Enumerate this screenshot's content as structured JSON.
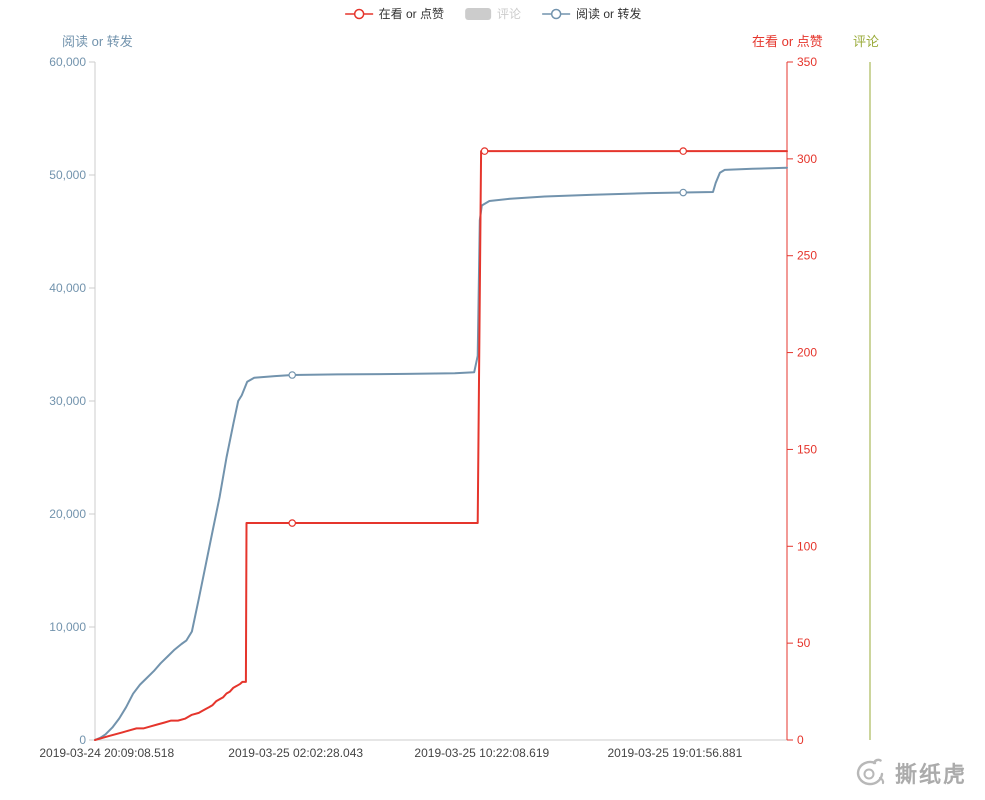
{
  "legend": {
    "items": [
      {
        "label": "在看 or 点赞",
        "symbol": "line-circle",
        "color": "#e5352c",
        "text_color": "#333333",
        "selected": true
      },
      {
        "label": "评论",
        "symbol": "rect",
        "color": "#cccccc",
        "text_color": "#cccccc",
        "selected": false
      },
      {
        "label": "阅读 or 转发",
        "symbol": "line-circle",
        "color": "#7293ad",
        "text_color": "#333333",
        "selected": true
      }
    ]
  },
  "watermark": {
    "text": "撕纸虎",
    "color": "#ababab"
  },
  "chart_data": {
    "type": "line",
    "title": "",
    "grid": false,
    "legend_position": "top-center",
    "axes": {
      "left": {
        "title": "阅读 or 转发",
        "color": "#7293ad",
        "line_color": "#cccccc",
        "min": 0,
        "max": 60000,
        "ticks": [
          {
            "label": "0",
            "v": 0
          },
          {
            "label": "10,000",
            "v": 10000
          },
          {
            "label": "20,000",
            "v": 20000
          },
          {
            "label": "30,000",
            "v": 30000
          },
          {
            "label": "40,000",
            "v": 40000
          },
          {
            "label": "50,000",
            "v": 50000
          },
          {
            "label": "60,000",
            "v": 60000
          }
        ]
      },
      "right": {
        "title": "在看 or 点赞",
        "color": "#e5352c",
        "min": 0,
        "max": 350,
        "ticks": [
          {
            "label": "0",
            "v": 0
          },
          {
            "label": "50",
            "v": 50
          },
          {
            "label": "100",
            "v": 100
          },
          {
            "label": "150",
            "v": 150
          },
          {
            "label": "200",
            "v": 200
          },
          {
            "label": "250",
            "v": 250
          },
          {
            "label": "300",
            "v": 300
          },
          {
            "label": "350",
            "v": 350
          }
        ]
      },
      "far_right": {
        "title": "评论",
        "color": "#9aab3a",
        "ticks": []
      }
    },
    "x_axis": {
      "type": "time",
      "label_color": "#444444",
      "labels": [
        {
          "text": "2019-03-24 20:09:08.518",
          "pos": 0.017
        },
        {
          "text": "2019-03-25 02:02:28.043",
          "pos": 0.29
        },
        {
          "text": "2019-03-25 10:22:08.619",
          "pos": 0.559
        },
        {
          "text": "2019-03-25 19:01:56.881",
          "pos": 0.838
        }
      ]
    },
    "series": [
      {
        "name": "阅读 or 转发",
        "axis": "left",
        "color": "#7293ad",
        "visible": true,
        "points": [
          [
            0.0,
            0
          ],
          [
            0.008,
            200
          ],
          [
            0.015,
            500
          ],
          [
            0.025,
            1100
          ],
          [
            0.035,
            1900
          ],
          [
            0.045,
            2900
          ],
          [
            0.055,
            4100
          ],
          [
            0.065,
            4900
          ],
          [
            0.075,
            5500
          ],
          [
            0.085,
            6100
          ],
          [
            0.095,
            6800
          ],
          [
            0.105,
            7400
          ],
          [
            0.115,
            8000
          ],
          [
            0.125,
            8500
          ],
          [
            0.132,
            8800
          ],
          [
            0.14,
            9600
          ],
          [
            0.15,
            12500
          ],
          [
            0.16,
            15500
          ],
          [
            0.17,
            18500
          ],
          [
            0.18,
            21500
          ],
          [
            0.19,
            25000
          ],
          [
            0.2,
            28000
          ],
          [
            0.207,
            30000
          ],
          [
            0.212,
            30500
          ],
          [
            0.22,
            31700
          ],
          [
            0.23,
            32050
          ],
          [
            0.26,
            32200
          ],
          [
            0.285,
            32300
          ],
          [
            0.35,
            32350
          ],
          [
            0.45,
            32400
          ],
          [
            0.52,
            32450
          ],
          [
            0.548,
            32550
          ],
          [
            0.553,
            34000
          ],
          [
            0.556,
            46000
          ],
          [
            0.559,
            47300
          ],
          [
            0.57,
            47700
          ],
          [
            0.6,
            47900
          ],
          [
            0.65,
            48100
          ],
          [
            0.72,
            48250
          ],
          [
            0.8,
            48400
          ],
          [
            0.85,
            48450
          ],
          [
            0.893,
            48500
          ],
          [
            0.897,
            49300
          ],
          [
            0.903,
            50200
          ],
          [
            0.91,
            50450
          ],
          [
            0.95,
            50550
          ],
          [
            1.0,
            50650
          ]
        ],
        "markers": [
          [
            0.285,
            32300
          ],
          [
            0.85,
            48450
          ]
        ]
      },
      {
        "name": "在看 or 点赞",
        "axis": "right",
        "color": "#e5352c",
        "visible": true,
        "points": [
          [
            0.0,
            0
          ],
          [
            0.02,
            2
          ],
          [
            0.04,
            4
          ],
          [
            0.05,
            5
          ],
          [
            0.06,
            6
          ],
          [
            0.07,
            6
          ],
          [
            0.08,
            7
          ],
          [
            0.09,
            8
          ],
          [
            0.1,
            9
          ],
          [
            0.11,
            10
          ],
          [
            0.12,
            10
          ],
          [
            0.13,
            11
          ],
          [
            0.135,
            12
          ],
          [
            0.14,
            13
          ],
          [
            0.15,
            14
          ],
          [
            0.155,
            15
          ],
          [
            0.16,
            16
          ],
          [
            0.165,
            17
          ],
          [
            0.17,
            18
          ],
          [
            0.175,
            20
          ],
          [
            0.18,
            21
          ],
          [
            0.185,
            22
          ],
          [
            0.19,
            24
          ],
          [
            0.195,
            25
          ],
          [
            0.2,
            27
          ],
          [
            0.205,
            28
          ],
          [
            0.21,
            29
          ],
          [
            0.213,
            30
          ],
          [
            0.218,
            30
          ],
          [
            0.219,
            112
          ],
          [
            0.25,
            112
          ],
          [
            0.285,
            112
          ],
          [
            0.35,
            112
          ],
          [
            0.45,
            112
          ],
          [
            0.5,
            112
          ],
          [
            0.553,
            112
          ],
          [
            0.558,
            304
          ],
          [
            0.6,
            304
          ],
          [
            0.65,
            304
          ],
          [
            0.75,
            304
          ],
          [
            0.85,
            304
          ],
          [
            1.0,
            304
          ]
        ],
        "markers": [
          [
            0.285,
            112
          ],
          [
            0.563,
            304
          ],
          [
            0.85,
            304
          ]
        ]
      },
      {
        "name": "评论",
        "axis": "far_right",
        "color": "#cccccc",
        "visible": false,
        "points": []
      }
    ]
  }
}
